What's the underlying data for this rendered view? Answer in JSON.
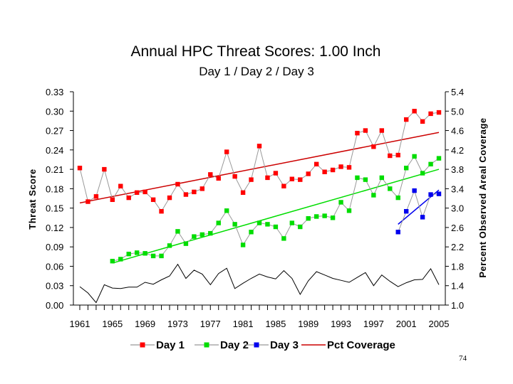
{
  "chart_data": {
    "type": "line",
    "title": "Annual HPC Threat Scores:  1.00 Inch",
    "subtitle": "Day 1 / Day 2 / Day 3",
    "ylabel": "Threat Score",
    "y2label": "Percent Observed Areal Coverage",
    "ylim": [
      0.0,
      0.33
    ],
    "y2lim": [
      1.0,
      5.4
    ],
    "xlim": [
      1961,
      2005
    ],
    "y_ticks": [
      "0.00",
      "0.03",
      "0.06",
      "0.09",
      "0.12",
      "0.15",
      "0.18",
      "0.21",
      "0.24",
      "0.27",
      "0.30",
      "0.33"
    ],
    "y2_ticks": [
      "1.0",
      "1.4",
      "1.8",
      "2.2",
      "2.6",
      "3.0",
      "3.4",
      "3.8",
      "4.2",
      "4.6",
      "5.0",
      "5.4"
    ],
    "x_tick_labels": [
      "1961",
      "1965",
      "1969",
      "1973",
      "1977",
      "1981",
      "1985",
      "1989",
      "1993",
      "1997",
      "2001",
      "2005"
    ],
    "grid": false,
    "legend_position": "bottom",
    "series": [
      {
        "name": "Day 1",
        "color": "#ff0000",
        "marker": "square",
        "axis": "left",
        "x": [
          1961,
          1962,
          1963,
          1964,
          1965,
          1966,
          1967,
          1968,
          1969,
          1970,
          1971,
          1972,
          1973,
          1974,
          1975,
          1976,
          1977,
          1978,
          1979,
          1980,
          1981,
          1982,
          1983,
          1984,
          1985,
          1986,
          1987,
          1988,
          1989,
          1990,
          1991,
          1992,
          1993,
          1994,
          1995,
          1996,
          1997,
          1998,
          1999,
          2000,
          2001,
          2002,
          2003,
          2004,
          2005
        ],
        "values": [
          0.212,
          0.16,
          0.168,
          0.21,
          0.163,
          0.184,
          0.166,
          0.174,
          0.175,
          0.163,
          0.145,
          0.166,
          0.187,
          0.171,
          0.175,
          0.18,
          0.202,
          0.196,
          0.237,
          0.199,
          0.174,
          0.194,
          0.246,
          0.197,
          0.204,
          0.184,
          0.195,
          0.194,
          0.203,
          0.218,
          0.206,
          0.209,
          0.214,
          0.213,
          0.266,
          0.27,
          0.245,
          0.27,
          0.231,
          0.232,
          0.287,
          0.3,
          0.284,
          0.296,
          0.298
        ]
      },
      {
        "name": "Day 2",
        "color": "#00dd00",
        "marker": "square",
        "axis": "left",
        "x": [
          1965,
          1966,
          1967,
          1968,
          1969,
          1970,
          1971,
          1972,
          1973,
          1974,
          1975,
          1976,
          1977,
          1978,
          1979,
          1980,
          1981,
          1982,
          1983,
          1984,
          1985,
          1986,
          1987,
          1988,
          1989,
          1990,
          1991,
          1992,
          1993,
          1994,
          1995,
          1996,
          1997,
          1998,
          1999,
          2000,
          2001,
          2002,
          2003,
          2004,
          2005
        ],
        "values": [
          0.068,
          0.071,
          0.079,
          0.081,
          0.08,
          0.076,
          0.076,
          0.092,
          0.114,
          0.095,
          0.106,
          0.109,
          0.111,
          0.127,
          0.146,
          0.125,
          0.093,
          0.113,
          0.127,
          0.125,
          0.121,
          0.103,
          0.127,
          0.121,
          0.134,
          0.137,
          0.138,
          0.135,
          0.159,
          0.146,
          0.197,
          0.194,
          0.17,
          0.197,
          0.18,
          0.166,
          0.212,
          0.23,
          0.204,
          0.218,
          0.227
        ]
      },
      {
        "name": "Day 3",
        "color": "#0000ee",
        "marker": "square",
        "axis": "left",
        "x": [
          2000,
          2001,
          2002,
          2003,
          2004,
          2005
        ],
        "values": [
          0.113,
          0.145,
          0.177,
          0.136,
          0.171,
          0.172
        ]
      },
      {
        "name": "Pct Coverage",
        "color": "#000000",
        "marker": "none",
        "axis": "right",
        "x": [
          1961,
          1962,
          1963,
          1964,
          1965,
          1966,
          1967,
          1968,
          1969,
          1970,
          1971,
          1972,
          1973,
          1974,
          1975,
          1976,
          1977,
          1978,
          1979,
          1980,
          1981,
          1982,
          1983,
          1984,
          1985,
          1986,
          1987,
          1988,
          1989,
          1990,
          1991,
          1992,
          1993,
          1994,
          1995,
          1996,
          1997,
          1998,
          1999,
          2000,
          2001,
          2002,
          2003,
          2004,
          2005
        ],
        "values": [
          1.38,
          1.25,
          1.05,
          1.42,
          1.35,
          1.34,
          1.37,
          1.37,
          1.47,
          1.43,
          1.52,
          1.6,
          1.84,
          1.55,
          1.72,
          1.64,
          1.42,
          1.65,
          1.76,
          1.34,
          1.45,
          1.55,
          1.64,
          1.58,
          1.54,
          1.71,
          1.55,
          1.22,
          1.5,
          1.69,
          1.62,
          1.55,
          1.51,
          1.47,
          1.57,
          1.67,
          1.4,
          1.62,
          1.49,
          1.38,
          1.46,
          1.52,
          1.53,
          1.75,
          1.42
        ]
      }
    ],
    "trendlines": [
      {
        "series": "Day 1",
        "color": "#cc0000",
        "x": [
          1961,
          2005
        ],
        "values": [
          0.158,
          0.267
        ]
      },
      {
        "series": "Day 2",
        "color": "#00dd00",
        "x": [
          1965,
          2005
        ],
        "values": [
          0.065,
          0.21
        ]
      },
      {
        "series": "Day 3",
        "color": "#0000ee",
        "x": [
          2000,
          2005
        ],
        "values": [
          0.125,
          0.178
        ]
      }
    ],
    "legend": [
      "Day 1",
      "Day 2",
      "Day 3",
      "Pct Coverage"
    ]
  },
  "page_number": "74"
}
